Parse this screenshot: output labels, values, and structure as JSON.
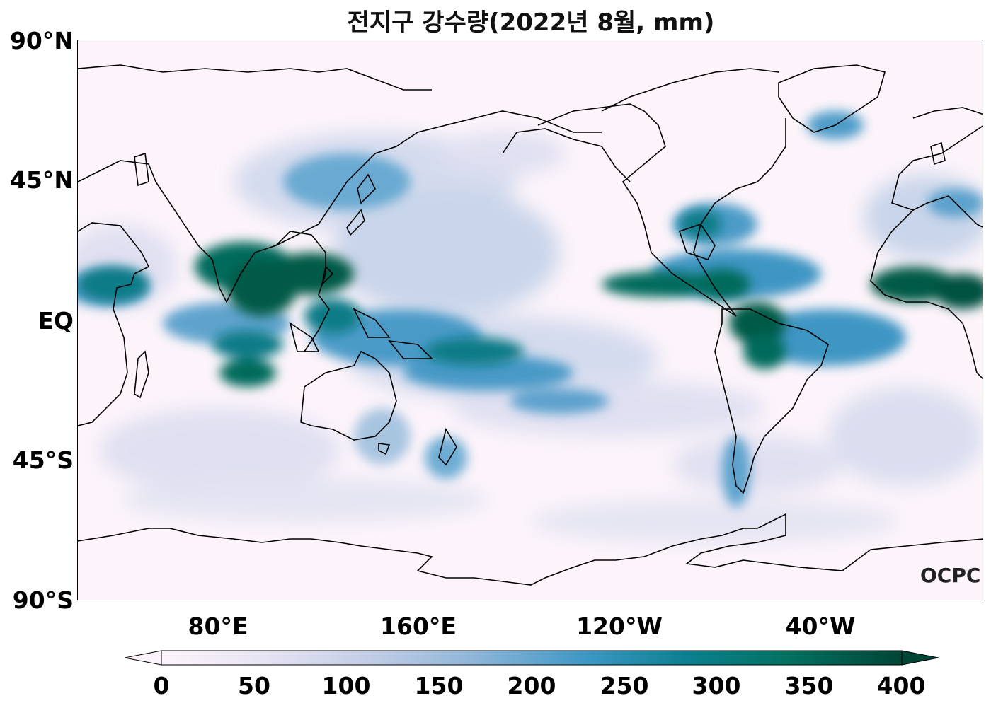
{
  "title": "전지구 강수량(2022년 8월, mm)",
  "y_ticks": [
    "90°N",
    "45°N",
    "EQ",
    "45°S",
    "90°S"
  ],
  "x_ticks": [
    "80°E",
    "160°E",
    "120°W",
    "40°W"
  ],
  "colorbar": {
    "ticks": [
      "0",
      "50",
      "100",
      "150",
      "200",
      "250",
      "300",
      "350",
      "400"
    ],
    "colors": [
      "#fcf4fa",
      "#d6d9ee",
      "#a6c3e0",
      "#5fa5cf",
      "#2b8cbe",
      "#0a7b87",
      "#036b5c",
      "#00513f"
    ]
  },
  "logo": "OCPC",
  "colors": {
    "ocean": "#fcf4fa",
    "heavy": "#005a46",
    "medium": "#2b8cbe",
    "light": "#b8cbe5"
  }
}
